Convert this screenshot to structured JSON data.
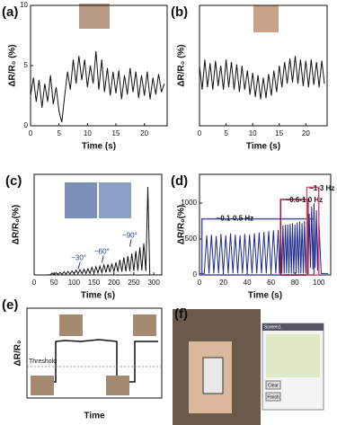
{
  "chart_data": [
    {
      "type": "line",
      "label": "(a)",
      "xlabel": "Time (s)",
      "ylabel": "ΔR/R₀ (%)",
      "color": "#111111",
      "xlim": [
        0,
        24
      ],
      "ylim": [
        0,
        10
      ],
      "xticks": [
        0,
        5,
        10,
        15,
        20
      ],
      "yticks": [
        0,
        5,
        10
      ],
      "x": [
        0,
        0.5,
        1,
        1.5,
        2,
        2.5,
        3,
        3.5,
        4,
        4.5,
        5,
        5.5,
        6,
        6.5,
        7,
        7.5,
        8,
        8.5,
        9,
        9.5,
        10,
        10.5,
        11,
        11.5,
        12,
        12.5,
        13,
        13.5,
        14,
        14.5,
        15,
        15.5,
        16,
        16.5,
        17,
        17.5,
        18,
        18.5,
        19,
        19.5,
        20,
        20.5,
        21,
        21.5,
        22,
        22.5,
        23,
        23.5
      ],
      "values": [
        2.5,
        4,
        2,
        3.8,
        1.5,
        3.5,
        2,
        4.2,
        1.8,
        3.2,
        1.2,
        0.3,
        2.5,
        4.5,
        3,
        5.5,
        3.5,
        5.8,
        3.8,
        5.5,
        3.2,
        5,
        3.5,
        6.2,
        3,
        5.5,
        2.8,
        4.8,
        2.5,
        4.5,
        2.7,
        4.6,
        2.2,
        4.2,
        2.6,
        4.8,
        2.8,
        4.5,
        2.3,
        4.2,
        2.5,
        4.5,
        2.2,
        4,
        2.6,
        4.3,
        2.8,
        3.5
      ]
    },
    {
      "type": "line",
      "label": "(b)",
      "xlabel": "Time (s)",
      "ylabel": "ΔR/R₀ (%)",
      "color": "#111111",
      "xlim": [
        0,
        24
      ],
      "ylim": [
        0,
        10
      ],
      "xticks": [
        0,
        5,
        10,
        15,
        20
      ],
      "x": [
        0,
        0.5,
        1,
        1.5,
        2,
        2.5,
        3,
        3.5,
        4,
        4.5,
        5,
        5.5,
        6,
        6.5,
        7,
        7.5,
        8,
        8.5,
        9,
        9.5,
        10,
        10.5,
        11,
        11.5,
        12,
        12.5,
        13,
        13.5,
        14,
        14.5,
        15,
        15.5,
        16,
        16.5,
        17,
        17.5,
        18,
        18.5,
        19,
        19.5,
        20,
        20.5,
        21,
        21.5,
        22,
        22.5,
        23,
        23.5
      ],
      "values": [
        5,
        3,
        5.5,
        3.2,
        5.2,
        3,
        5.4,
        3.3,
        5,
        3,
        5.5,
        3.2,
        5.3,
        3,
        5.1,
        2.8,
        5,
        3,
        4.6,
        2.6,
        4.4,
        2.4,
        4.2,
        2.2,
        4,
        2.3,
        4.3,
        2.5,
        4.6,
        2.8,
        5,
        3.2,
        5.3,
        3.5,
        5.6,
        3.6,
        5.8,
        3.5,
        5.5,
        3.3,
        5.4,
        3.2,
        5.5,
        3.4,
        5.3,
        3.2,
        5.4,
        3.5
      ]
    },
    {
      "type": "line",
      "label": "(c)",
      "xlabel": "Time (s)",
      "ylabel": "ΔR/R₀(%)",
      "color": "#111111",
      "xlim": [
        0,
        320
      ],
      "ylim": [
        0,
        8000
      ],
      "xticks": [
        0,
        50,
        100,
        150,
        200,
        250,
        300
      ],
      "annotations": [
        "~30°",
        "~60°",
        "~90°"
      ],
      "annotation_color": "#1f3f8f",
      "x": [
        0,
        10,
        20,
        30,
        40,
        45,
        50,
        55,
        60,
        65,
        70,
        75,
        80,
        85,
        90,
        95,
        100,
        105,
        110,
        115,
        120,
        125,
        130,
        135,
        140,
        145,
        150,
        155,
        160,
        165,
        170,
        175,
        180,
        185,
        190,
        195,
        200,
        205,
        210,
        215,
        220,
        225,
        230,
        235,
        240,
        245,
        250,
        255,
        260,
        265,
        270,
        275,
        280,
        285,
        290,
        300
      ],
      "values": [
        0,
        0,
        0,
        0,
        20,
        150,
        30,
        180,
        40,
        200,
        50,
        250,
        60,
        280,
        70,
        320,
        80,
        380,
        90,
        420,
        100,
        450,
        110,
        500,
        120,
        600,
        150,
        650,
        160,
        700,
        180,
        800,
        200,
        850,
        220,
        900,
        240,
        1000,
        250,
        1200,
        260,
        1400,
        280,
        1500,
        300,
        1700,
        320,
        1900,
        340,
        2200,
        350,
        2500,
        300,
        7000,
        0,
        0
      ]
    },
    {
      "type": "line",
      "label": "(d)",
      "xlabel": "Time (s)",
      "ylabel": "ΔR/R₀(%)",
      "color": "#1c2a8c",
      "xlim": [
        0,
        110
      ],
      "ylim": [
        0,
        1400
      ],
      "xticks": [
        0,
        20,
        40,
        60,
        80,
        100
      ],
      "yticks": [
        0,
        500,
        1000
      ],
      "annotations": [
        "~0.1-0.5 Hz",
        "~0.6-1.0 Hz",
        "~1-3 Hz"
      ],
      "annotation_colors": [
        "#4a4fa0",
        "#9b1b3a",
        "#e0507a"
      ],
      "x": [
        0,
        2,
        4,
        6,
        8,
        10,
        12,
        14,
        16,
        18,
        20,
        22,
        24,
        26,
        28,
        30,
        32,
        34,
        36,
        38,
        40,
        42,
        44,
        46,
        48,
        50,
        52,
        54,
        56,
        58,
        60,
        62,
        64,
        66,
        67,
        68,
        69,
        70,
        71,
        72,
        73,
        74,
        75,
        76,
        77,
        78,
        79,
        80,
        81,
        82,
        83,
        84,
        85,
        86,
        87,
        88,
        89,
        90,
        91,
        92,
        93,
        94,
        95,
        96,
        97,
        98,
        99,
        100,
        102,
        104,
        106,
        108
      ],
      "values": [
        20,
        20,
        20,
        550,
        20,
        560,
        20,
        540,
        20,
        570,
        20,
        550,
        20,
        580,
        20,
        560,
        20,
        550,
        20,
        570,
        20,
        560,
        20,
        580,
        20,
        590,
        20,
        600,
        20,
        610,
        20,
        620,
        20,
        630,
        20,
        680,
        20,
        690,
        20,
        700,
        20,
        700,
        20,
        710,
        20,
        720,
        20,
        700,
        20,
        730,
        20,
        740,
        20,
        720,
        20,
        750,
        20,
        760,
        50,
        850,
        100,
        950,
        80,
        1000,
        100,
        900,
        60,
        820,
        20,
        20,
        20,
        20
      ]
    }
  ],
  "panel_e": {
    "label": "(e)",
    "ylabel": "ΔR/R₀",
    "xlabel": "Time",
    "annotation": "Threshold"
  },
  "panel_f": {
    "label": "(f)",
    "screen_title": "Screen1",
    "buttons": [
      "Clear",
      "Finish"
    ]
  }
}
